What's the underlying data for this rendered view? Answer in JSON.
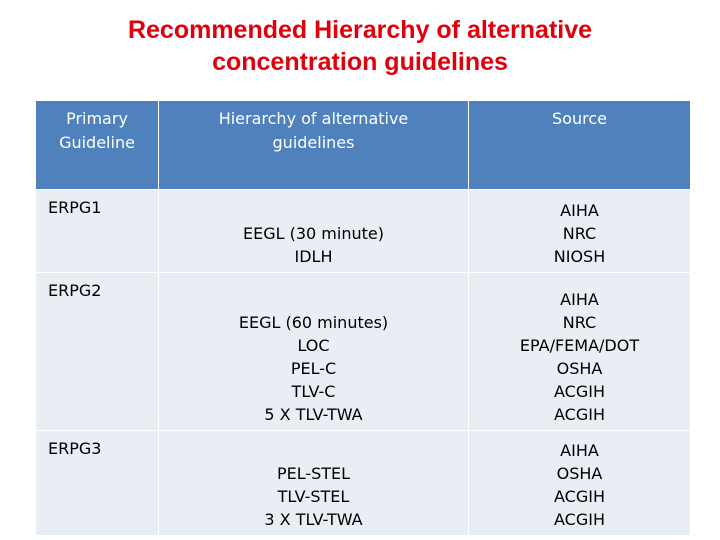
{
  "title": {
    "line1": "Recommended Hierarchy of alternative",
    "line2": "concentration guidelines"
  },
  "table": {
    "headers": {
      "primary": [
        "Primary",
        "Guideline"
      ],
      "hierarchy": [
        "Hierarchy of alternative",
        "guidelines"
      ],
      "source": [
        "Source"
      ]
    },
    "rows": [
      {
        "primary": "ERPG1",
        "hierarchy": [
          "EEGL (30 minute)",
          "IDLH"
        ],
        "source": [
          "AIHA",
          "NRC",
          "NIOSH"
        ]
      },
      {
        "primary": "ERPG2",
        "hierarchy": [
          "EEGL (60 minutes)",
          "LOC",
          "PEL-C",
          "TLV-C",
          "5 X TLV-TWA"
        ],
        "source": [
          "AIHA",
          "NRC",
          "EPA/FEMA/DOT",
          "OSHA",
          "ACGIH",
          "ACGIH"
        ]
      },
      {
        "primary": "ERPG3",
        "hierarchy": [
          "PEL-STEL",
          "TLV-STEL",
          "3 X TLV-TWA"
        ],
        "source": [
          "AIHA",
          "OSHA",
          "ACGIH",
          "ACGIH"
        ]
      }
    ]
  }
}
